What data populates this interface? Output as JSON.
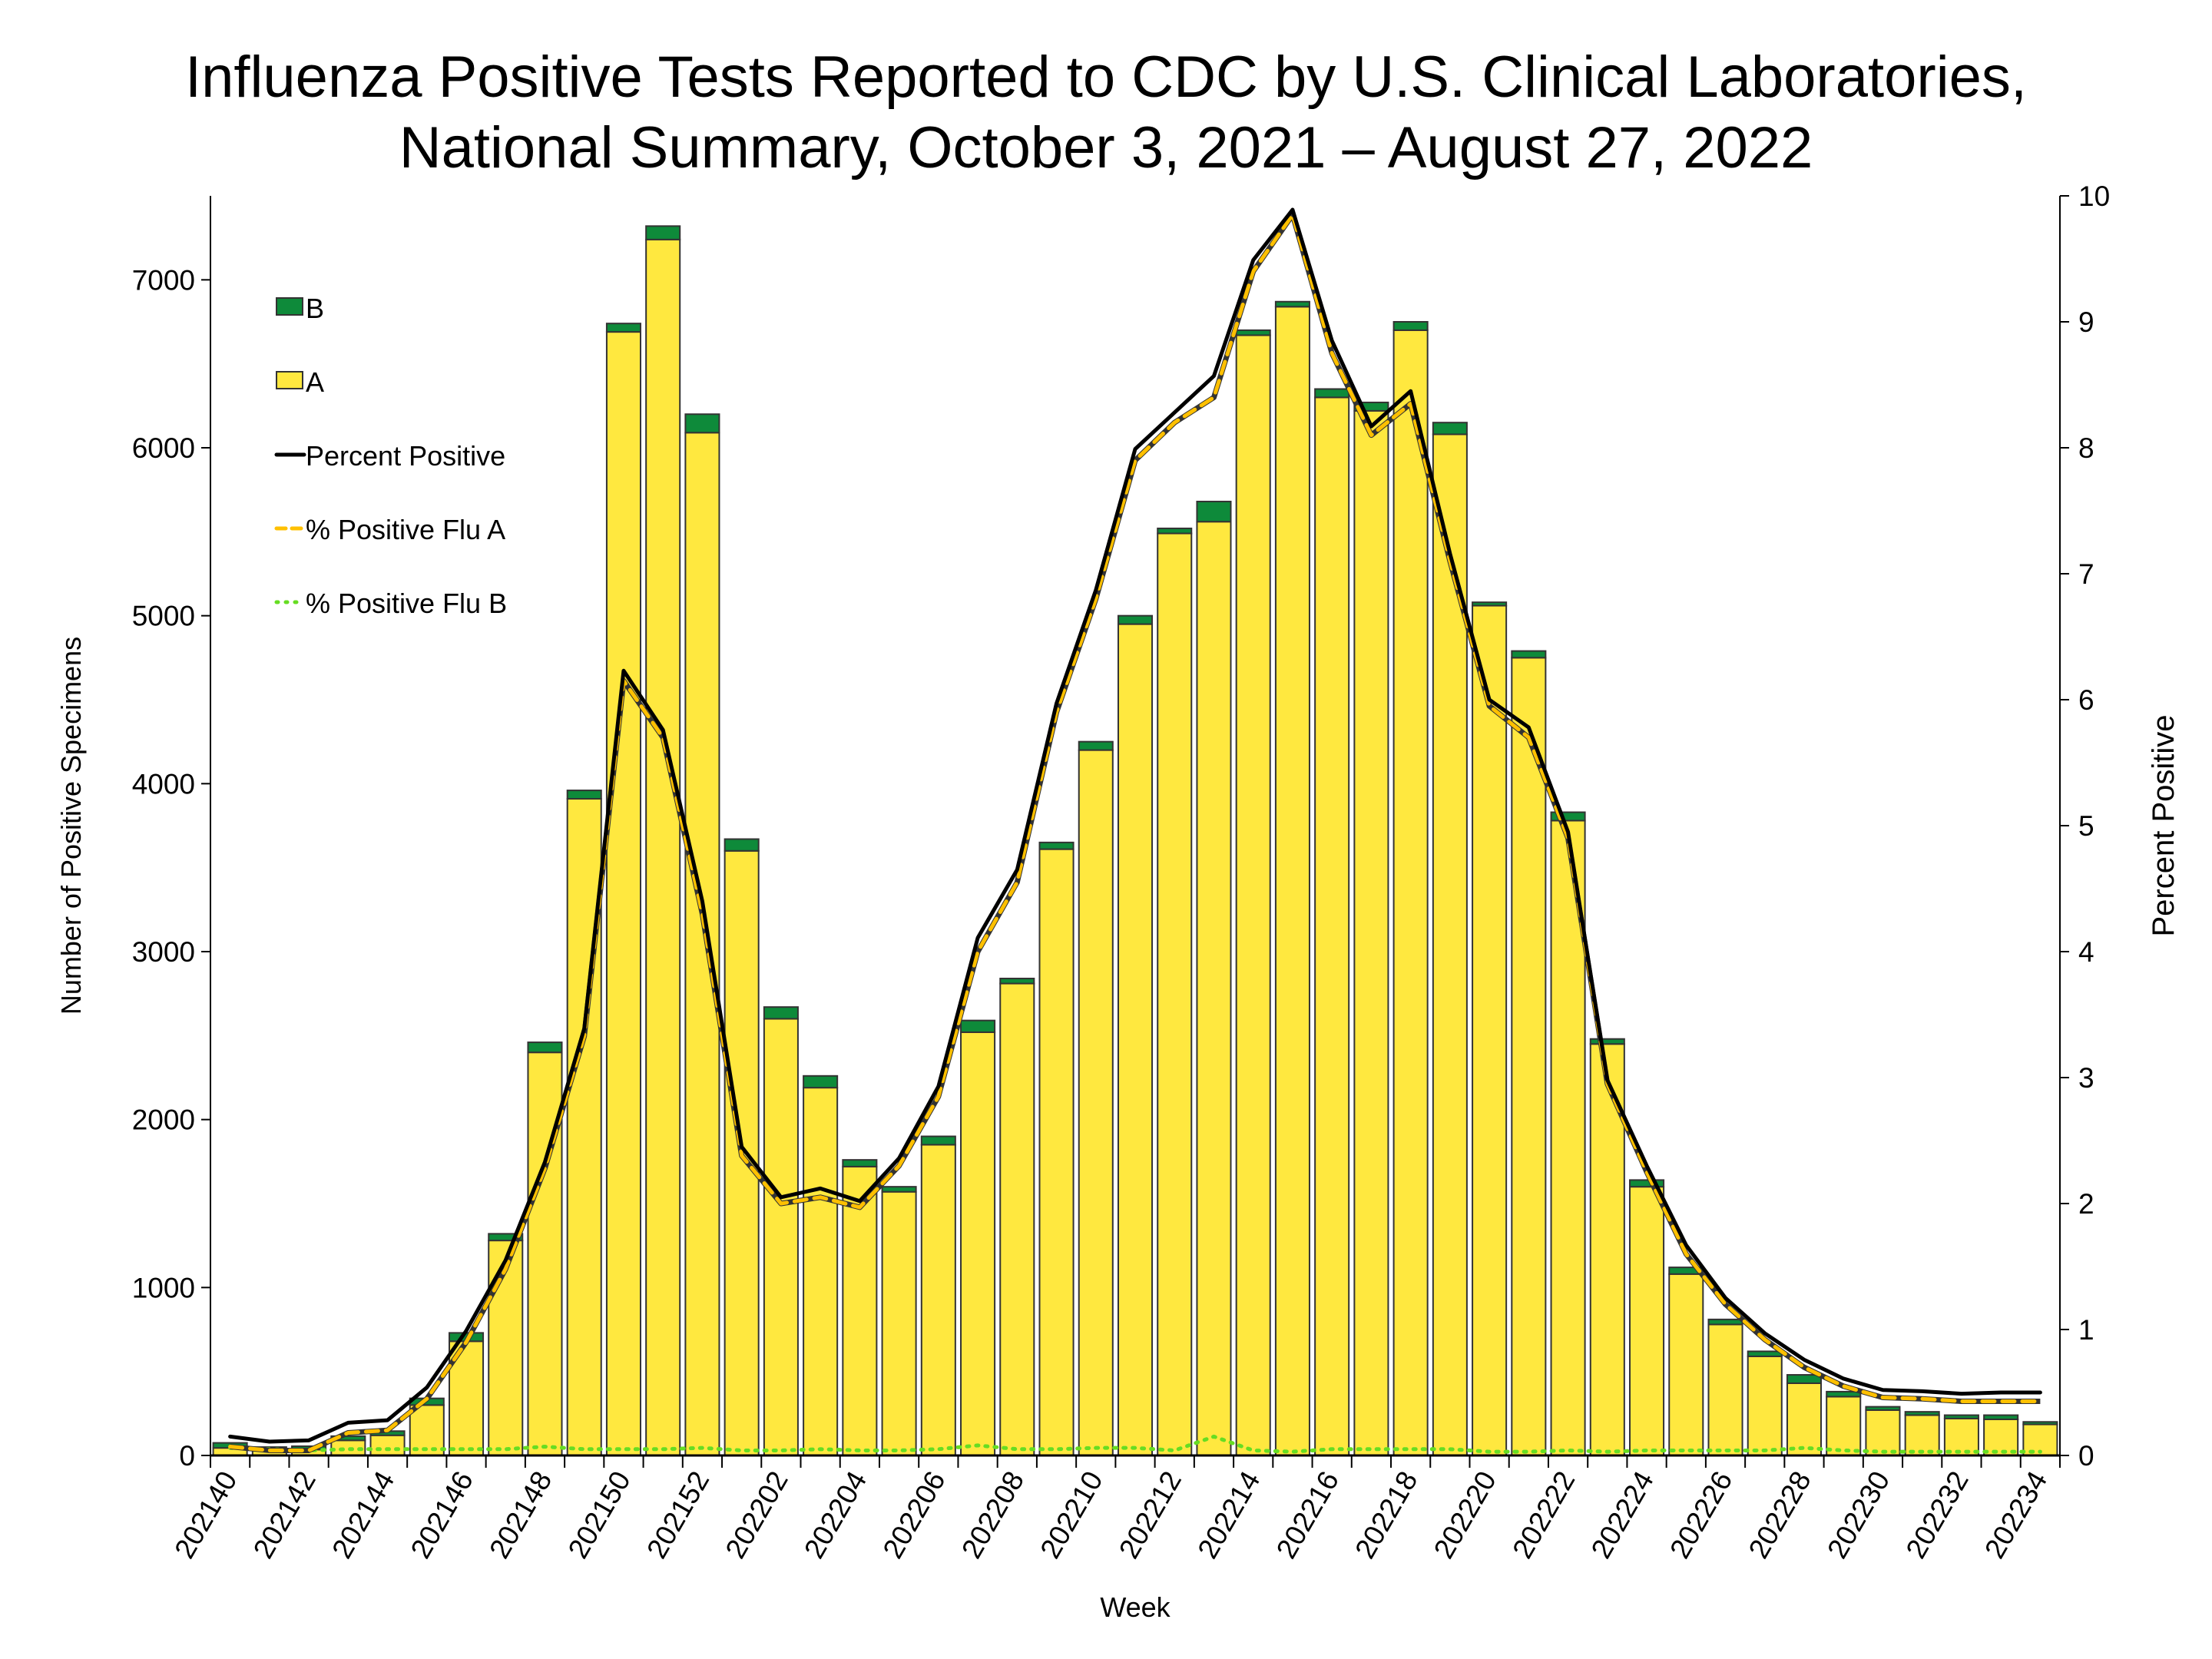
{
  "chart_data": {
    "type": "bar",
    "title_line1": "Influenza Positive Tests Reported to CDC by U.S. Clinical Laboratories,",
    "title_line2": "National Summary, October 3, 2021 – August 27, 2022",
    "xlabel": "Week",
    "ylabel": "Number of Positive Specimens",
    "y2label": "Percent Positive",
    "ylim": [
      0,
      7500
    ],
    "y2lim": [
      0,
      10
    ],
    "yticks": [
      0,
      1000,
      2000,
      3000,
      4000,
      5000,
      6000,
      7000
    ],
    "y2ticks": [
      0,
      1,
      2,
      3,
      4,
      5,
      6,
      7,
      8,
      9,
      10
    ],
    "categories": [
      "202140",
      "202141",
      "202142",
      "202143",
      "202144",
      "202145",
      "202146",
      "202147",
      "202148",
      "202149",
      "202150",
      "202151",
      "202152",
      "202201",
      "202202",
      "202203",
      "202204",
      "202205",
      "202206",
      "202207",
      "202208",
      "202209",
      "202210",
      "202211",
      "202212",
      "202213",
      "202214",
      "202215",
      "202216",
      "202217",
      "202218",
      "202219",
      "202220",
      "202221",
      "202222",
      "202223",
      "202224",
      "202225",
      "202226",
      "202227",
      "202228",
      "202229",
      "202230",
      "202231",
      "202232",
      "202233",
      "202234"
    ],
    "xtick_labels": [
      "202140",
      "202142",
      "202144",
      "202146",
      "202148",
      "202150",
      "202152",
      "202202",
      "202204",
      "202206",
      "202208",
      "202210",
      "202212",
      "202214",
      "202216",
      "202218",
      "202220",
      "202222",
      "202224",
      "202226",
      "202228",
      "202230",
      "202232",
      "202234"
    ],
    "stacked_series": [
      {
        "name": "A",
        "color": "#FFE83F",
        "values": [
          45,
          30,
          35,
          90,
          120,
          300,
          680,
          1280,
          2400,
          3910,
          6690,
          7240,
          6090,
          3600,
          2600,
          2190,
          1720,
          1570,
          1850,
          2520,
          2810,
          3610,
          4200,
          4950,
          5490,
          5560,
          6670,
          6840,
          6300,
          6220,
          6700,
          6080,
          5060,
          4750,
          3780,
          2450,
          1600,
          1080,
          780,
          590,
          430,
          350,
          270,
          240,
          220,
          215,
          185
        ]
      },
      {
        "name": "B",
        "color": "#0E8A3A",
        "values": [
          30,
          20,
          20,
          25,
          25,
          40,
          50,
          40,
          60,
          50,
          50,
          80,
          110,
          70,
          70,
          70,
          40,
          30,
          50,
          70,
          30,
          40,
          50,
          50,
          30,
          120,
          30,
          30,
          50,
          50,
          50,
          70,
          20,
          40,
          50,
          30,
          40,
          40,
          30,
          30,
          50,
          30,
          20,
          20,
          20,
          25,
          15
        ]
      }
    ],
    "line_series": [
      {
        "name": "Percent Positive",
        "color": "#000000",
        "style": "solid",
        "values": [
          0.15,
          0.11,
          0.12,
          0.26,
          0.28,
          0.54,
          0.99,
          1.55,
          2.33,
          3.39,
          6.23,
          5.76,
          4.4,
          2.45,
          2.05,
          2.12,
          2.02,
          2.36,
          2.93,
          4.11,
          4.65,
          5.97,
          6.87,
          7.99,
          8.28,
          8.57,
          9.49,
          9.89,
          8.85,
          8.17,
          8.45,
          7.16,
          6.0,
          5.78,
          4.95,
          2.98,
          2.3,
          1.67,
          1.25,
          0.97,
          0.76,
          0.61,
          0.52,
          0.51,
          0.49,
          0.5,
          0.5
        ]
      },
      {
        "name": "% Positive Flu A",
        "color": "#FFC000",
        "style": "dashed",
        "values": [
          0.07,
          0.04,
          0.04,
          0.18,
          0.2,
          0.45,
          0.9,
          1.48,
          2.28,
          3.33,
          6.15,
          5.7,
          4.3,
          2.38,
          2.0,
          2.05,
          1.97,
          2.3,
          2.85,
          4.0,
          4.55,
          5.9,
          6.8,
          7.9,
          8.2,
          8.4,
          9.4,
          9.85,
          8.75,
          8.1,
          8.35,
          7.1,
          5.95,
          5.7,
          4.9,
          2.95,
          2.25,
          1.6,
          1.2,
          0.92,
          0.7,
          0.55,
          0.46,
          0.45,
          0.43,
          0.43,
          0.43
        ]
      },
      {
        "name": "% Positive Flu B",
        "color": "#66DD22",
        "style": "dotted",
        "values": [
          0.06,
          0.05,
          0.04,
          0.05,
          0.05,
          0.05,
          0.05,
          0.05,
          0.07,
          0.05,
          0.05,
          0.05,
          0.06,
          0.04,
          0.04,
          0.05,
          0.04,
          0.04,
          0.05,
          0.08,
          0.05,
          0.05,
          0.06,
          0.06,
          0.04,
          0.15,
          0.04,
          0.03,
          0.05,
          0.05,
          0.05,
          0.05,
          0.03,
          0.03,
          0.04,
          0.03,
          0.04,
          0.04,
          0.04,
          0.04,
          0.06,
          0.04,
          0.03,
          0.03,
          0.03,
          0.03,
          0.03
        ]
      }
    ],
    "legend_position": "top-left",
    "grid": false
  }
}
